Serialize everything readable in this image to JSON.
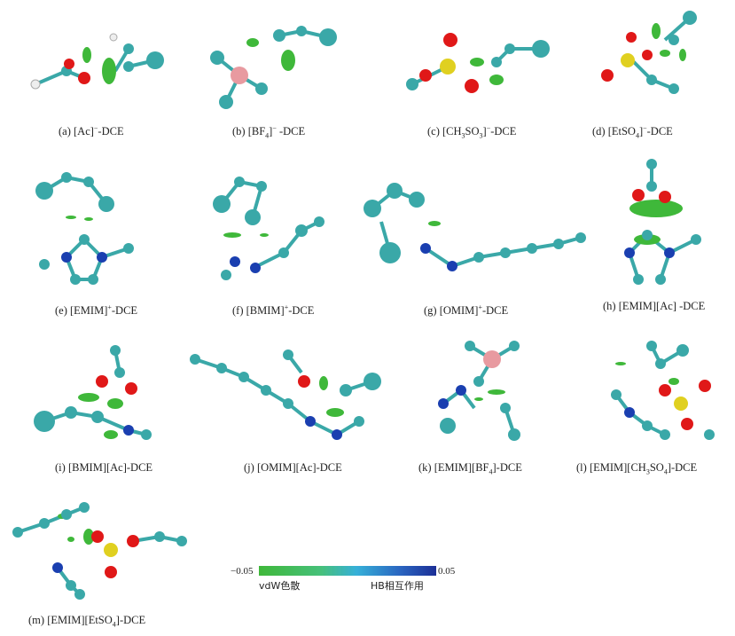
{
  "panels": [
    {
      "id": "a",
      "label": "(a)",
      "species_html": "[Ac]<sup>−</sup>-DCE"
    },
    {
      "id": "b",
      "label": "(b)",
      "species_html": "[BF<sub>4</sub>]<sup>−</sup> -DCE"
    },
    {
      "id": "c",
      "label": "(c)",
      "species_html": "[CH<sub>3</sub>SO<sub>3</sub>]<sup>−</sup>-DCE"
    },
    {
      "id": "d",
      "label": "(d)",
      "species_html": "[EtSO<sub>4</sub>]<sup>−</sup>-DCE"
    },
    {
      "id": "e",
      "label": "(e)",
      "species_html": "[EMIM]<sup>+</sup>-DCE"
    },
    {
      "id": "f",
      "label": "(f)",
      "species_html": "[BMIM]<sup>+</sup>-DCE"
    },
    {
      "id": "g",
      "label": "(g)",
      "species_html": "[OMIM]<sup>+</sup>-DCE"
    },
    {
      "id": "h",
      "label": "(h)",
      "species_html": "[EMIM][Ac] -DCE"
    },
    {
      "id": "i",
      "label": "(i)",
      "species_html": "[BMIM][Ac]-DCE"
    },
    {
      "id": "j",
      "label": "(j)",
      "species_html": "[OMIM][Ac]-DCE"
    },
    {
      "id": "k",
      "label": "(k)",
      "species_html": "[EMIM][BF<sub>4</sub>]-DCE"
    },
    {
      "id": "l",
      "label": "(l)",
      "species_html": "[EMIM][CH<sub>3</sub>SO<sub>4</sub>]-DCE"
    },
    {
      "id": "m",
      "label": "(m)",
      "species_html": "[EMIM][EtSO<sub>4</sub>]-DCE"
    }
  ],
  "scale": {
    "min": "−0.05",
    "max": "0.05",
    "left_label": "vdW色散",
    "right_label": "HB相互作用"
  },
  "colors": {
    "carbon": "#3aa8a8",
    "hydrogen": "#f2f2f2",
    "oxygen": "#e01818",
    "sulfur": "#e0d020",
    "nitrogen": "#1a3fb0",
    "boron": "#e89aa0",
    "chlorine": "#3cb4b0",
    "vdw_surface": "#3fb83a",
    "hb_surface": "#1c2f96"
  }
}
